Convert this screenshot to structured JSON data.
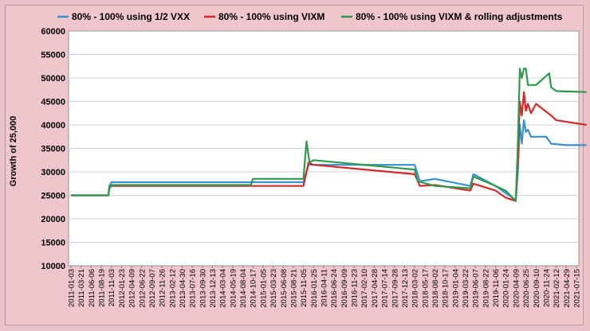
{
  "chart_data": {
    "type": "line",
    "title": "",
    "xlabel": "",
    "ylabel": "Growth of 25,000",
    "ylim": [
      10000,
      60000
    ],
    "yticks": [
      10000,
      15000,
      20000,
      25000,
      30000,
      35000,
      40000,
      45000,
      50000,
      55000,
      60000
    ],
    "ytick_labels": [
      "10000",
      "15000",
      "20000",
      "25000",
      "30000",
      "35000",
      "40000",
      "45000",
      "50000",
      "55000",
      "60000"
    ],
    "grid": true,
    "legend_position": "top",
    "x_tick_labels": [
      "2011-01-03",
      "2011-03-21",
      "2011-06-06",
      "2011-08-19",
      "2011-11-03",
      "2012-01-23",
      "2012-04-09",
      "2012-06-22",
      "2012-09-07",
      "2012-11-26",
      "2013-02-12",
      "2013-04-30",
      "2013-07-16",
      "2013-09-30",
      "2013-12-13",
      "2014-03-04",
      "2014-05-19",
      "2014-08-04",
      "2014-10-17",
      "2015-01-05",
      "2015-03-23",
      "2015-06-08",
      "2015-08-21",
      "2015-11-05",
      "2016-01-25",
      "2016-04-11",
      "2016-06-24",
      "2016-09-09",
      "2016-11-23",
      "2017-02-10",
      "2017-04-28",
      "2017-07-14",
      "2017-09-28",
      "2017-12-13",
      "2018-03-02",
      "2018-05-17",
      "2018-08-02",
      "2018-10-17",
      "2019-01-04",
      "2019-03-22",
      "2019-06-07",
      "2019-08-22",
      "2019-11-06",
      "2020-01-24",
      "2020-04-09",
      "2020-06-25",
      "2020-09-10",
      "2020-11-24",
      "2021-02-12",
      "2021-04-29",
      "2021-07-15"
    ],
    "series": [
      {
        "name": "80% - 100% using 1/2 VXX",
        "color": "#3a8fd1",
        "x": [
          0,
          3.7,
          3.8,
          4,
          23,
          23.5,
          34,
          34.5,
          36,
          39.5,
          39.8,
          42,
          43,
          44,
          44.2,
          44.4,
          44.6,
          44.8,
          45,
          45.2,
          45.5,
          47,
          47.5,
          49,
          51
        ],
        "y": [
          25000,
          25000,
          27000,
          27800,
          27800,
          31500,
          31500,
          28000,
          28500,
          27000,
          29500,
          27000,
          25500,
          24000,
          30000,
          40000,
          36000,
          41000,
          38500,
          39000,
          37500,
          37500,
          36000,
          35700,
          35700
        ]
      },
      {
        "name": "80% - 100% using VIXM",
        "color": "#d42a2a",
        "x": [
          0,
          3.7,
          3.8,
          4,
          23,
          23.5,
          24,
          34,
          34.5,
          36,
          39.5,
          39.8,
          42,
          43,
          44,
          44.2,
          44.4,
          44.6,
          44.8,
          45,
          45.2,
          45.5,
          46,
          47.5,
          48,
          51
        ],
        "y": [
          25000,
          25000,
          26500,
          27000,
          27000,
          32000,
          31500,
          29500,
          27000,
          27200,
          26000,
          27500,
          26000,
          24500,
          23800,
          32000,
          45000,
          42000,
          47000,
          43000,
          44500,
          42500,
          44500,
          42000,
          41000,
          40000
        ]
      },
      {
        "name": "80% - 100% using VIXM & rolling adjustments",
        "color": "#2f9a4e",
        "x": [
          0,
          3.7,
          3.8,
          4,
          17.8,
          18,
          23,
          23.3,
          23.6,
          24,
          34,
          34.3,
          36,
          39.5,
          39.8,
          42,
          43,
          44,
          44.2,
          44.4,
          44.6,
          44.8,
          45,
          45.2,
          45.5,
          46,
          47.3,
          47.5,
          48,
          51
        ],
        "y": [
          25000,
          25000,
          26500,
          27200,
          27200,
          28500,
          28500,
          36500,
          32000,
          32500,
          30500,
          28000,
          27000,
          26500,
          29000,
          27000,
          26000,
          23800,
          36000,
          52000,
          50000,
          52000,
          52000,
          48500,
          48500,
          48500,
          51000,
          48000,
          47200,
          47000
        ]
      }
    ]
  }
}
